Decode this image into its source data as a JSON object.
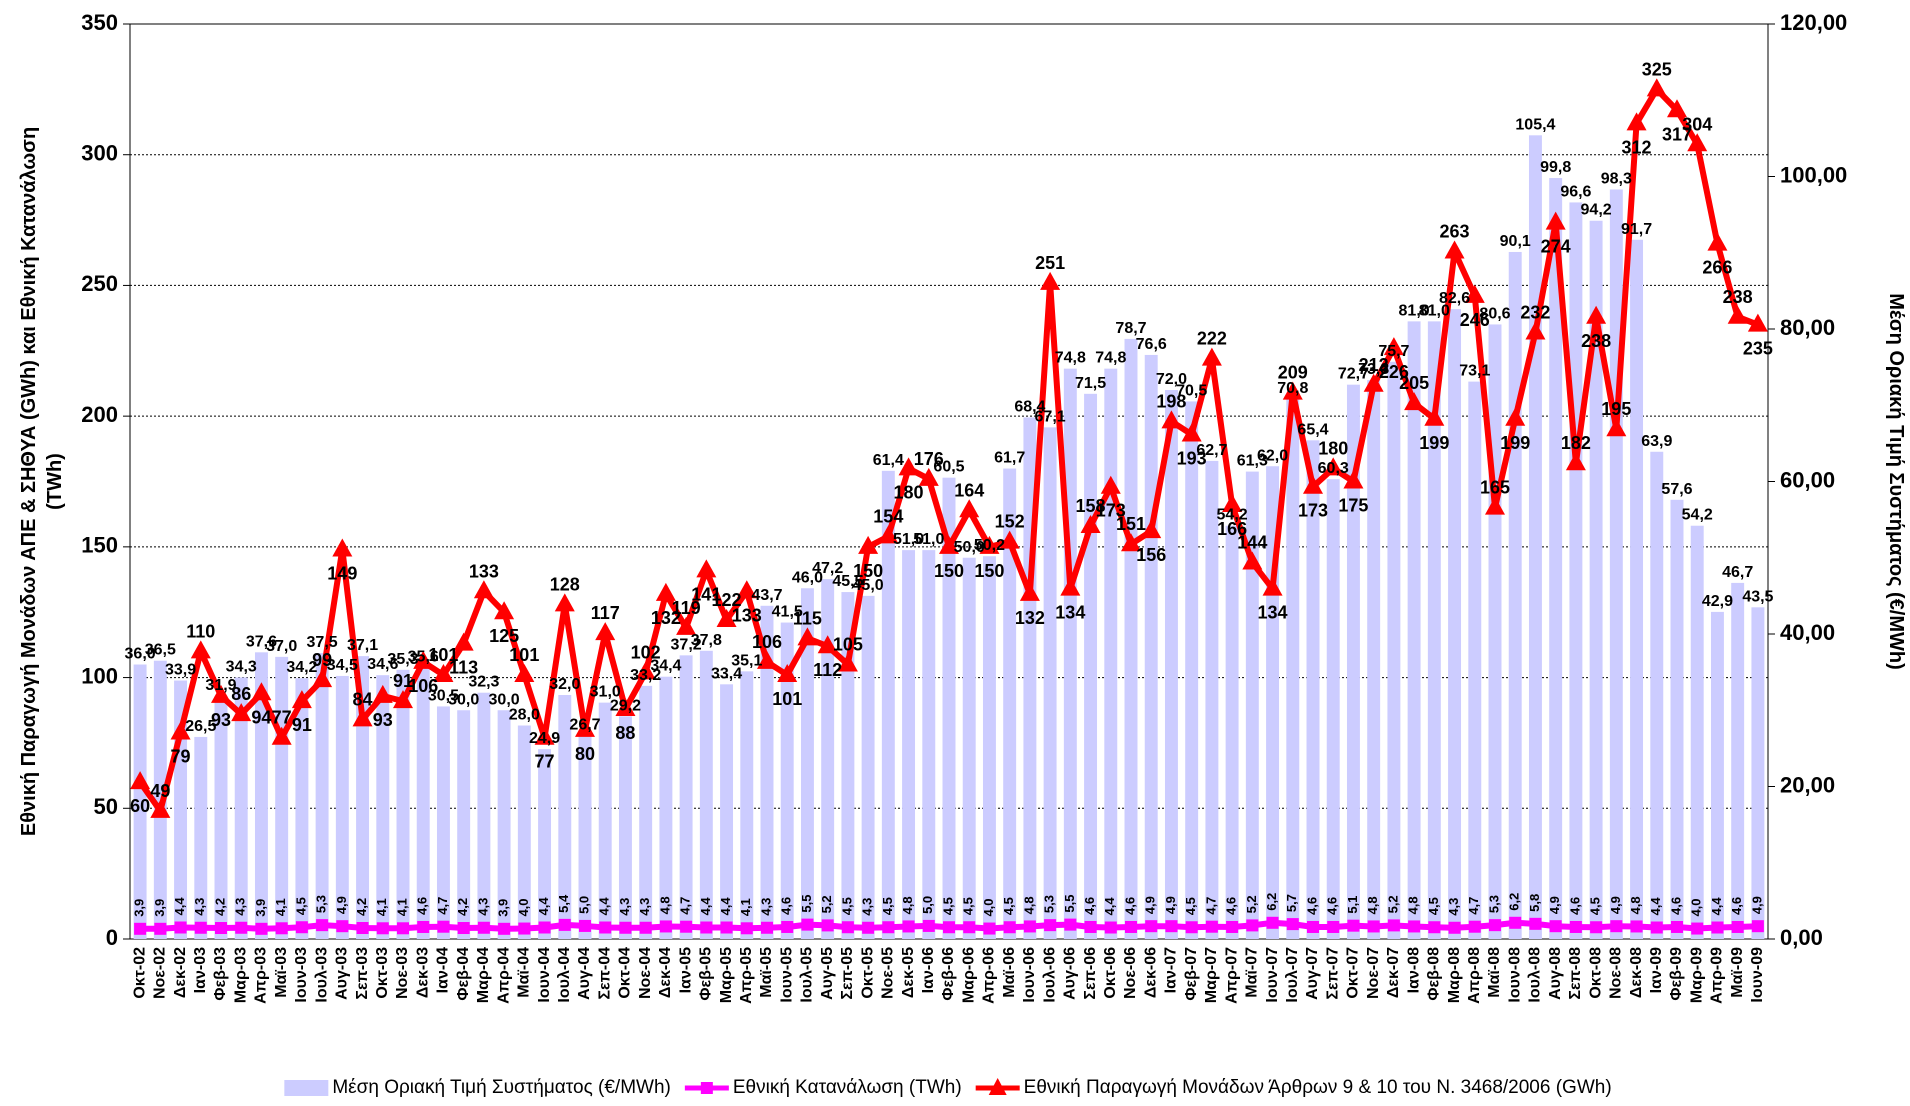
{
  "chart_data": {
    "type": "combo",
    "y_label": "Εθνική Παραγωγή Μονάδων ΑΠΕ & ΣΗΘΥΑ (GWh) και Εθνική Κατανάλωση (TWh)",
    "y2_label": "Μέση Οριακή Τιμή Συστήματος (€/MWh)",
    "categories": [
      "Οκτ-02",
      "Νοε-02",
      "Δεκ-02",
      "Ιαν-03",
      "Φεβ-03",
      "Μαρ-03",
      "Απρ-03",
      "Μαϊ-03",
      "Ιουν-03",
      "Ιουλ-03",
      "Αυγ-03",
      "Σεπ-03",
      "Οκτ-03",
      "Νοε-03",
      "Δεκ-03",
      "Ιαν-04",
      "Φεβ-04",
      "Μαρ-04",
      "Απρ-04",
      "Μαϊ-04",
      "Ιουν-04",
      "Ιουλ-04",
      "Αυγ-04",
      "Σεπ-04",
      "Οκτ-04",
      "Νοε-04",
      "Δεκ-04",
      "Ιαν-05",
      "Φεβ-05",
      "Μαρ-05",
      "Απρ-05",
      "Μαϊ-05",
      "Ιουν-05",
      "Ιουλ-05",
      "Αυγ-05",
      "Σεπ-05",
      "Οκτ-05",
      "Νοε-05",
      "Δεκ-05",
      "Ιαν-06",
      "Φεβ-06",
      "Μαρ-06",
      "Απρ-06",
      "Μαϊ-06",
      "Ιουν-06",
      "Ιουλ-06",
      "Αυγ-06",
      "Σεπ-06",
      "Οκτ-06",
      "Νοε-06",
      "Δεκ-06",
      "Ιαν-07",
      "Φεβ-07",
      "Μαρ-07",
      "Απρ-07",
      "Μαϊ-07",
      "Ιουν-07",
      "Ιουλ-07",
      "Αυγ-07",
      "Σεπ-07",
      "Οκτ-07",
      "Νοε-07",
      "Δεκ-07",
      "Ιαν-08",
      "Φεβ-08",
      "Μαρ-08",
      "Απρ-08",
      "Μαϊ-08",
      "Ιουν-08",
      "Ιουλ-08",
      "Αυγ-08",
      "Σεπ-08",
      "Οκτ-08",
      "Νοε-08",
      "Δεκ-08",
      "Ιαν-09",
      "Φεβ-09",
      "Μαρ-09",
      "Απρ-09",
      "Μαϊ-09",
      "Ιουν-09"
    ],
    "series": [
      {
        "name": "Μέση Οριακή Τιμή Συστήματος (€/MWh)",
        "type": "bar",
        "axis": "y2",
        "color": "#ccccff",
        "values": [
          36.0,
          36.5,
          33.9,
          26.5,
          31.9,
          34.3,
          37.6,
          37.0,
          34.2,
          37.5,
          34.5,
          37.1,
          34.6,
          35.3,
          35.6,
          30.5,
          30.0,
          32.3,
          30.0,
          28.0,
          24.9,
          32.0,
          26.7,
          31.0,
          29.2,
          33.2,
          34.4,
          37.2,
          37.8,
          33.4,
          35.1,
          43.7,
          41.5,
          46.0,
          47.2,
          45.5,
          45.0,
          61.4,
          51.0,
          51.0,
          60.5,
          50.0,
          50.2,
          61.7,
          68.4,
          67.1,
          74.8,
          71.5,
          74.8,
          78.7,
          76.6,
          72.0,
          70.5,
          62.7,
          54.2,
          61.3,
          62.0,
          70.8,
          65.4,
          60.3,
          72.7,
          73.3,
          75.7,
          81.0,
          81.0,
          82.6,
          73.1,
          80.6,
          90.1,
          105.4,
          99.8,
          96.6,
          94.2,
          98.3,
          91.7,
          63.9,
          57.6,
          54.2,
          42.9,
          46.7,
          43.5
        ],
        "value_labels": [
          "36,0",
          "36,5",
          "33,9",
          "26,5",
          "31,9",
          "34,3",
          "37,6",
          "37,0",
          "34,2",
          "37,5",
          "34,5",
          "37,1",
          "34,6",
          "35,3",
          "35,6",
          "30,5",
          "30,0",
          "32,3",
          "30,0",
          "28,0",
          "24,9",
          "32,0",
          "26,7",
          "31,0",
          "29,2",
          "33,2",
          "34,4",
          "37,2",
          "37,8",
          "33,4",
          "35,1",
          "43,7",
          "41,5",
          "46,0",
          "47,2",
          "45,5",
          "45,0",
          "61,4",
          "51,0",
          "51,0",
          "60,5",
          "50,0",
          "50,2",
          "61,7",
          "68,4",
          "67,1",
          "74,8",
          "71,5",
          "74,8",
          "78,7",
          "76,6",
          "72,0",
          "70,5",
          "62,7",
          "54,2",
          "61,3",
          "62,0",
          "70,8",
          "65,4",
          "60,3",
          "72,7",
          "73,3",
          "75,7",
          "81,0",
          "81,0",
          "82,6",
          "73,1",
          "80,6",
          "90,1",
          "105,4",
          "99,8",
          "96,6",
          "94,2",
          "98,3",
          "91,7",
          "63,9",
          "57,6",
          "54,2",
          "42,9",
          "46,7",
          "43,5"
        ]
      },
      {
        "name": "Εθνική Κατανάλωση (TWh)",
        "type": "line",
        "color": "#ff00ff",
        "values": [
          3.9,
          3.9,
          4.4,
          4.3,
          4.2,
          4.3,
          3.9,
          4.1,
          4.5,
          5.3,
          4.9,
          4.2,
          4.1,
          4.1,
          4.6,
          4.7,
          4.2,
          4.3,
          3.9,
          4.0,
          4.4,
          5.4,
          5.0,
          4.4,
          4.3,
          4.3,
          4.8,
          4.7,
          4.4,
          4.4,
          4.1,
          4.3,
          4.6,
          5.5,
          5.2,
          4.5,
          4.3,
          4.5,
          4.8,
          5.0,
          4.5,
          4.5,
          4.0,
          4.5,
          4.8,
          5.3,
          5.5,
          4.6,
          4.4,
          4.6,
          4.9,
          4.9,
          4.5,
          4.7,
          4.6,
          5.2,
          6.2,
          5.7,
          4.6,
          4.6,
          5.1,
          4.8,
          5.2,
          4.8,
          4.5,
          4.3,
          4.7,
          5.3,
          6.2,
          5.8,
          4.9,
          4.6,
          4.5,
          4.9,
          4.8,
          4.4,
          4.6,
          4.0,
          4.4,
          4.6,
          4.9
        ],
        "value_labels": [
          "3,9",
          "3,9",
          "4,4",
          "4,3",
          "4,2",
          "4,3",
          "3,9",
          "4,1",
          "4,5",
          "5,3",
          "4,9",
          "4,2",
          "4,1",
          "4,1",
          "4,6",
          "4,7",
          "4,2",
          "4,3",
          "3,9",
          "4,0",
          "4,4",
          "5,4",
          "5,0",
          "4,4",
          "4,3",
          "4,3",
          "4,8",
          "4,7",
          "4,4",
          "4,4",
          "4,1",
          "4,3",
          "4,6",
          "5,5",
          "5,2",
          "4,5",
          "4,3",
          "4,5",
          "4,8",
          "5,0",
          "4,5",
          "4,5",
          "4,0",
          "4,5",
          "4,8",
          "5,3",
          "5,5",
          "4,6",
          "4,4",
          "4,6",
          "4,9",
          "4,9",
          "4,5",
          "4,7",
          "4,6",
          "5,2",
          "6,2",
          "5,7",
          "4,6",
          "4,6",
          "5,1",
          "4,8",
          "5,2",
          "4,8",
          "4,5",
          "4,3",
          "4,7",
          "5,3",
          "6,2",
          "5,8",
          "4,9",
          "4,6",
          "4,5",
          "4,9",
          "4,8",
          "4,4",
          "4,6",
          "4,0",
          "4,4",
          "4,6",
          "4,9"
        ]
      },
      {
        "name": "Εθνική Παραγωγή Μονάδων Άρθρων 9 & 10 του Ν. 3468/2006 (GWh)",
        "type": "line",
        "color": "#ff0000",
        "values": [
          60,
          49,
          79,
          110,
          93,
          86,
          94,
          77,
          91,
          99,
          149,
          84,
          93,
          91,
          106,
          101,
          113,
          133,
          125,
          101,
          77,
          128,
          80,
          117,
          88,
          102,
          132,
          119,
          141,
          122,
          133,
          106,
          101,
          115,
          112,
          105,
          150,
          154,
          180,
          176,
          150,
          164,
          150,
          152,
          132,
          251,
          134,
          158,
          173,
          151,
          156,
          198,
          193,
          222,
          166,
          144,
          134,
          209,
          173,
          180,
          175,
          212,
          226,
          205,
          199,
          263,
          246,
          165,
          199,
          232,
          274,
          182,
          238,
          195,
          312,
          325,
          317,
          304,
          266,
          238,
          235
        ]
      }
    ],
    "ylim": [
      0,
      350
    ],
    "yticks": [
      0,
      50,
      100,
      150,
      200,
      250,
      300,
      350
    ],
    "y2lim": [
      0,
      120
    ],
    "y2ticks": [
      {
        "value": 0,
        "label": "0,00"
      },
      {
        "value": 20,
        "label": "20,00"
      },
      {
        "value": 40,
        "label": "40,00"
      },
      {
        "value": 60,
        "label": "60,00"
      },
      {
        "value": 80,
        "label": "80,00"
      },
      {
        "value": 100,
        "label": "100,00"
      },
      {
        "value": 120,
        "label": "120,00"
      }
    ],
    "grid": true,
    "legend": "bottom"
  }
}
